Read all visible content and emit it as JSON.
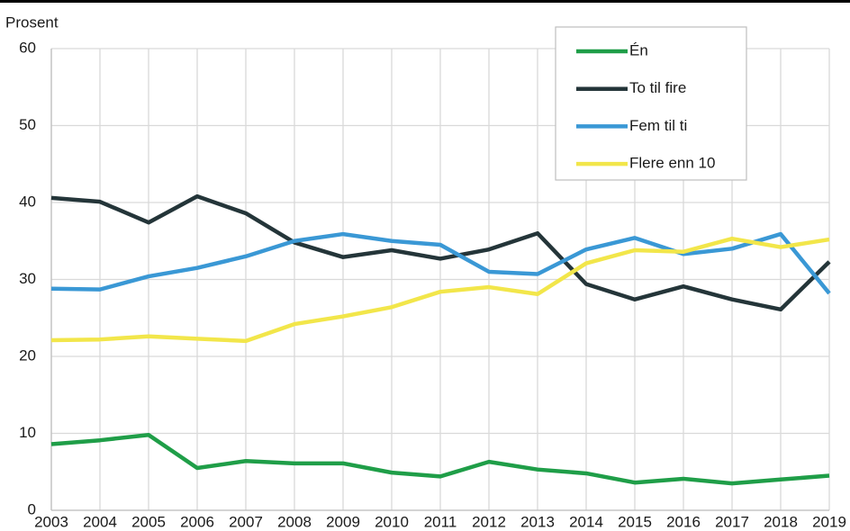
{
  "chart_data": {
    "type": "line",
    "y_label": "Prosent",
    "x": [
      2003,
      2004,
      2005,
      2006,
      2007,
      2008,
      2009,
      2010,
      2011,
      2012,
      2013,
      2014,
      2015,
      2016,
      2017,
      2018,
      2019
    ],
    "xlim": [
      2003,
      2019
    ],
    "xticks": [
      2003,
      2004,
      2005,
      2006,
      2007,
      2008,
      2009,
      2010,
      2011,
      2012,
      2013,
      2014,
      2015,
      2016,
      2017,
      2018,
      2019
    ],
    "ylim": [
      0,
      60
    ],
    "yticks": [
      0,
      10,
      20,
      30,
      40,
      50,
      60
    ],
    "grid": true,
    "legend": "top-right",
    "series": [
      {
        "name": "Én",
        "color": "#1f9e48",
        "values": [
          8.6,
          9.1,
          9.8,
          5.5,
          6.4,
          6.1,
          6.1,
          4.9,
          4.4,
          6.3,
          5.3,
          4.8,
          3.6,
          4.1,
          3.5,
          4.0,
          4.5
        ]
      },
      {
        "name": "To til fire",
        "color": "#243539",
        "values": [
          40.6,
          40.1,
          37.4,
          40.8,
          38.6,
          34.8,
          32.9,
          33.8,
          32.7,
          33.9,
          36.0,
          29.4,
          27.4,
          29.1,
          27.4,
          26.1,
          32.3
        ]
      },
      {
        "name": "Fem til ti",
        "color": "#3a98d5",
        "values": [
          28.8,
          28.7,
          30.4,
          31.5,
          33.0,
          35.0,
          35.9,
          35.0,
          34.5,
          31.0,
          30.7,
          33.9,
          35.4,
          33.3,
          34.0,
          35.9,
          28.2
        ]
      },
      {
        "name": "Flere enn 10",
        "color": "#f2e64a",
        "values": [
          22.1,
          22.2,
          22.6,
          22.3,
          22.0,
          24.2,
          25.2,
          26.4,
          28.4,
          29.0,
          28.1,
          32.1,
          33.8,
          33.6,
          35.3,
          34.2,
          35.2
        ]
      }
    ]
  }
}
